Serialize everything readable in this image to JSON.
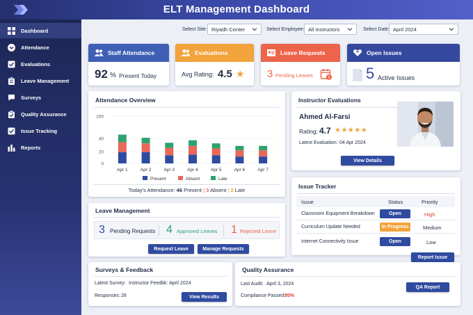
{
  "header": {
    "title": "ELT Management Dashboard"
  },
  "sidebar": {
    "items": [
      {
        "label": "Dashboard",
        "icon": "grid-icon"
      },
      {
        "label": "Attendance",
        "icon": "chevron-circle-icon"
      },
      {
        "label": "Evaluations",
        "icon": "checkbox-icon"
      },
      {
        "label": "Leave Management",
        "icon": "clipboard-icon"
      },
      {
        "label": "Surveys",
        "icon": "chat-icon"
      },
      {
        "label": "Quality Assurance",
        "icon": "clipboard-check-icon"
      },
      {
        "label": "Issue Tracking",
        "icon": "checkbox-icon"
      },
      {
        "label": "Reports",
        "icon": "bar-chart-icon"
      }
    ]
  },
  "filters": {
    "site_label": "Select Site:",
    "site_value": "Riyadh Center",
    "employee_label": "Select Employee:",
    "employee_value": "All Instructors",
    "date_label": "Select Date:",
    "date_value": "April 2024"
  },
  "kpis": {
    "attendance": {
      "title": "Staff Attendance",
      "value": "92",
      "unit": "%",
      "caption": "Present Today",
      "color": "#3f5fb5"
    },
    "evaluations": {
      "title": "Evaluations",
      "caption": "Avg Rating:",
      "value": "4.5",
      "star": "★",
      "color": "#f2a33c"
    },
    "leave": {
      "title": "Leave Requests",
      "value": "3",
      "caption": "Pending Leaves",
      "color": "#ec6449"
    },
    "issues": {
      "title": "Open Issues",
      "value": "5",
      "caption": "Active Issues",
      "color": "#34489e"
    }
  },
  "attendance_overview": {
    "title": "Attendance Overview",
    "summary_label": "Today's Attendance:",
    "summary_present_value": "46",
    "summary_present_label": "Present",
    "summary_sep1": "|",
    "summary_absent_value": "3",
    "summary_absent_label": "Absent",
    "summary_sep2": "|",
    "summary_late_value": "2",
    "summary_late_label": "Late"
  },
  "chart_data": {
    "type": "bar",
    "stacked": true,
    "categories": [
      "Apr 1",
      "Apr 2",
      "Apr 3",
      "Apr 4",
      "Apr 5",
      "Apr 6",
      "Apr 7"
    ],
    "series": [
      {
        "name": "Present",
        "color": "#2f4ba0",
        "values": [
          18,
          18,
          13,
          14,
          13,
          11,
          11
        ]
      },
      {
        "name": "Absent",
        "color": "#e8685a",
        "values": [
          16,
          14,
          12,
          14,
          11,
          10,
          10
        ]
      },
      {
        "name": "Late",
        "color": "#2ea36e",
        "values": [
          12,
          9,
          8,
          9,
          8,
          7,
          7
        ]
      }
    ],
    "yticks": [
      "0",
      "20",
      "40",
      "100"
    ],
    "ylim": [
      0,
      100
    ],
    "grid": true,
    "legend": "bottom"
  },
  "instructor_evaluations": {
    "title": "Instructor Evaluations",
    "name": "Ahmed Al-Farsi",
    "rating_label": "Rating:",
    "rating_value": "4.7",
    "stars": "★★★★★",
    "latest_label": "Latest Evaluation:",
    "latest_value": "04 Apr 2024",
    "button": "View Details"
  },
  "issue_tracker": {
    "title": "Issue Tracker",
    "columns": [
      "Issue",
      "Status",
      "Priority"
    ],
    "rows": [
      {
        "issue": "Classroom Equipment Breakdown",
        "status": "Open",
        "status_color": "#2f4ba0",
        "priority": "High",
        "priority_color": "#d9432c"
      },
      {
        "issue": "Curriculum Update Needed",
        "status": "In Progress",
        "status_color": "#f2a33c",
        "priority": "Medium",
        "priority_color": "#1f2a44"
      },
      {
        "issue": "Internet Connectivity Issue",
        "status": "Open",
        "status_color": "#2f4ba0",
        "priority": "Low",
        "priority_color": "#1f2a44"
      }
    ],
    "button": "Report Issue"
  },
  "leave_management": {
    "title": "Leave Management",
    "pending_value": "3",
    "pending_label": "Pending Requests",
    "approved_value": "4",
    "approved_label": "Approved Leaves",
    "rejected_value": "1",
    "rejected_label": "Rejected Leave",
    "request_button": "Request Leave",
    "manage_button": "Manage Requests"
  },
  "surveys": {
    "title": "Surveys & Feedback",
    "latest_label": "Latest Survey:",
    "latest_value": "Instructor Feedbk: April 2024",
    "responses_label": "Responses:",
    "responses_value": "28",
    "button": "View Results"
  },
  "quality": {
    "title": "Quality Assurance",
    "audit_label": "Last Audit:",
    "audit_value": "April 3, 2024",
    "compliance_label": "Compliance Passed:",
    "compliance_value": "95%",
    "button": "QA Report"
  }
}
